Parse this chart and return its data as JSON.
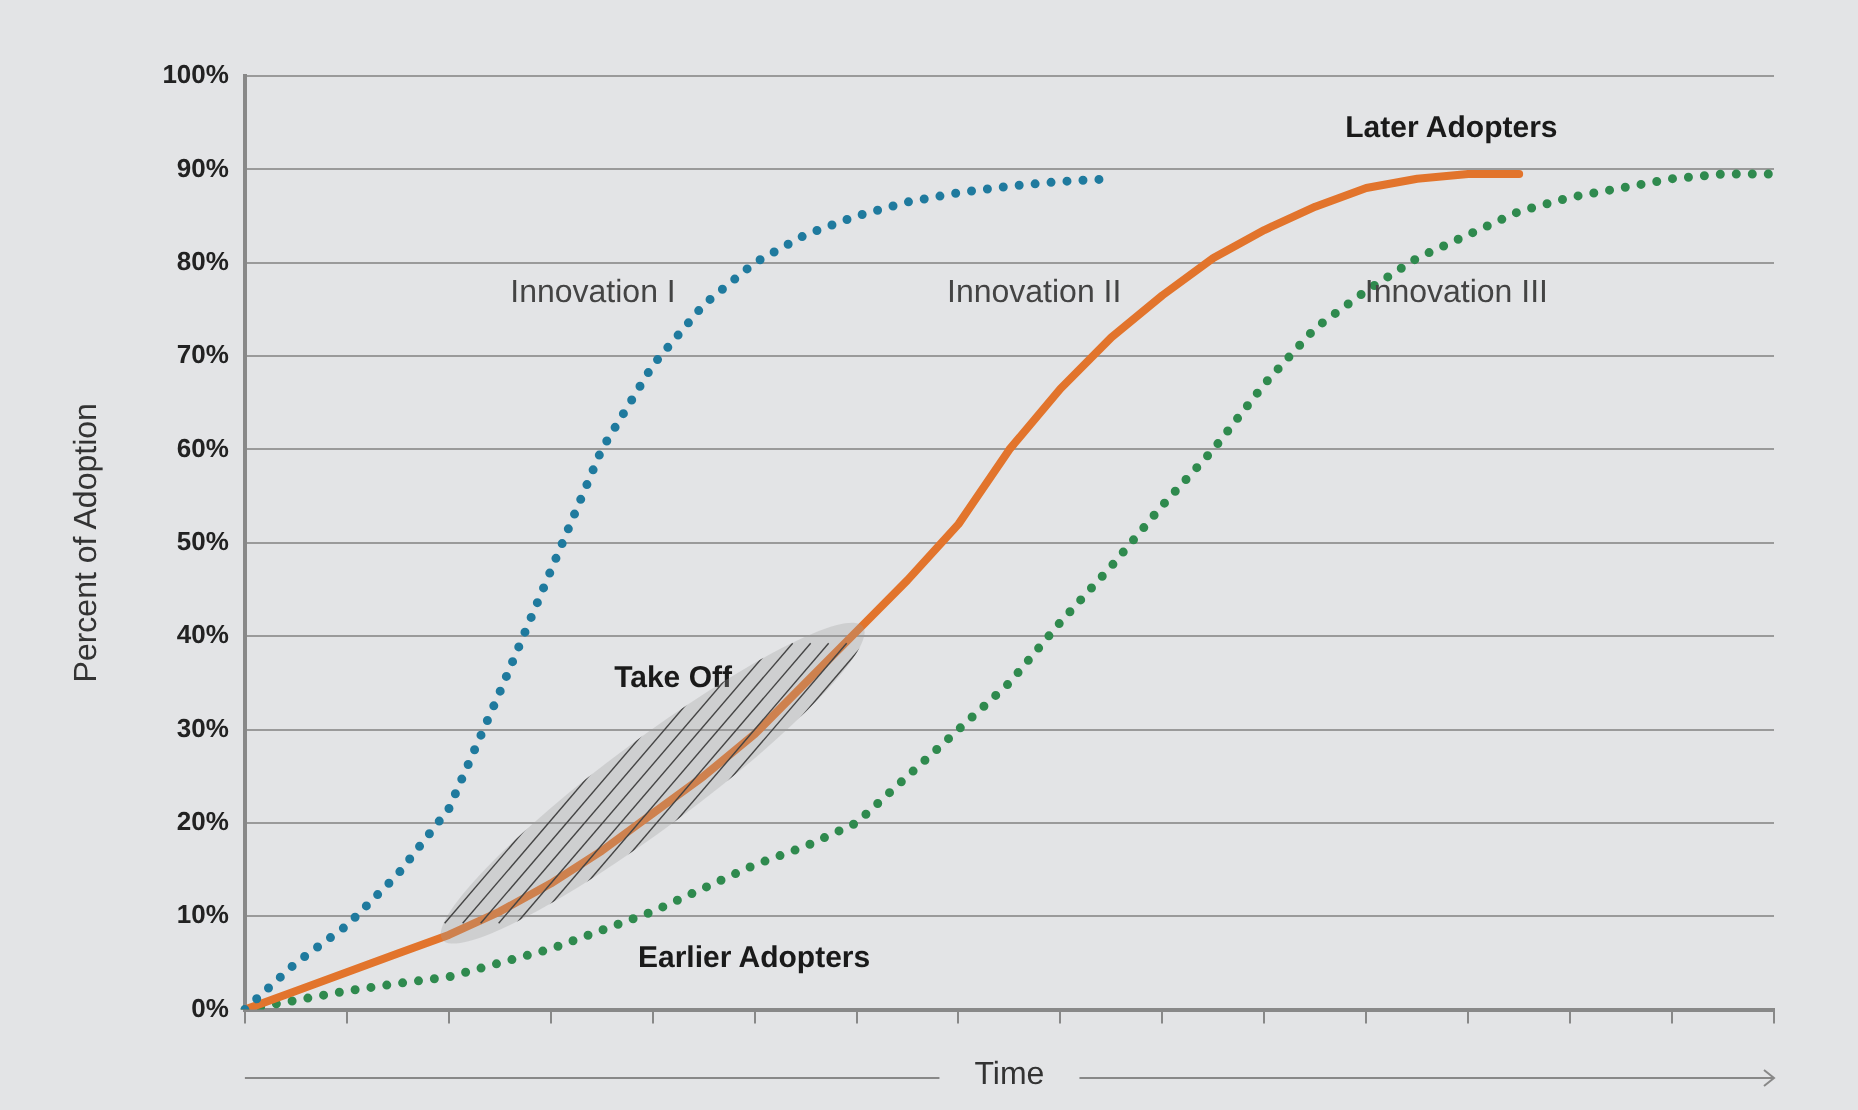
{
  "chart_data": {
    "type": "line",
    "xlabel": "Time",
    "ylabel": "Percent of Adoption",
    "categories": [
      null,
      null,
      null,
      null,
      null,
      null,
      null,
      null,
      null,
      null,
      null,
      null,
      null,
      null,
      null,
      null,
      null,
      null,
      null,
      null,
      null,
      null,
      null,
      null,
      null,
      null,
      null,
      null,
      null,
      null,
      null
    ],
    "ylim": [
      0,
      100
    ],
    "yticks": [
      {
        "value": 0,
        "label": "0%"
      },
      {
        "value": 10,
        "label": "10%"
      },
      {
        "value": 20,
        "label": "20%"
      },
      {
        "value": 30,
        "label": "30%"
      },
      {
        "value": 40,
        "label": "40%"
      },
      {
        "value": 50,
        "label": "50%"
      },
      {
        "value": 60,
        "label": "60%"
      },
      {
        "value": 70,
        "label": "70%"
      },
      {
        "value": 80,
        "label": "80%"
      },
      {
        "value": 90,
        "label": "90%"
      },
      {
        "value": 100,
        "label": "100%"
      }
    ],
    "grid": "y",
    "legend": false,
    "marker": "none",
    "tick_labels": "y",
    "series": [
      {
        "name": "Innovation I",
        "color": "#1f7a9e",
        "line_style": "dotted",
        "values": [
          0,
          5,
          9,
          14.5,
          21.5,
          34,
          47,
          60,
          69,
          75.5,
          80,
          83,
          85,
          86.5,
          87.5,
          88.2,
          88.7,
          89,
          null,
          null,
          null,
          null,
          null,
          null,
          null,
          null,
          null,
          null,
          null,
          null,
          null
        ]
      },
      {
        "name": "Innovation II",
        "color": "#e2742c",
        "line_style": "solid",
        "values": [
          0,
          2,
          4,
          6,
          8,
          10.5,
          13.5,
          17,
          21,
          25,
          29.5,
          35,
          40.5,
          46,
          52,
          60,
          66.5,
          72,
          76.5,
          80.5,
          83.5,
          86,
          88,
          89,
          89.5,
          89.5,
          null,
          null,
          null,
          null,
          null
        ]
      },
      {
        "name": "Innovation III",
        "color": "#2f8a4e",
        "line_style": "dotted",
        "values": [
          0,
          1,
          2,
          2.8,
          3.5,
          5,
          6.5,
          8.5,
          10.5,
          13,
          15.5,
          17.5,
          20,
          25,
          30,
          35,
          41.5,
          47.5,
          54,
          60,
          67,
          73,
          77,
          80.5,
          83,
          85.5,
          87,
          88,
          89,
          89.5,
          89.5
        ]
      }
    ],
    "annotations": [
      "Take Off",
      "Earlier Adopters",
      "Later Adopters"
    ]
  }
}
